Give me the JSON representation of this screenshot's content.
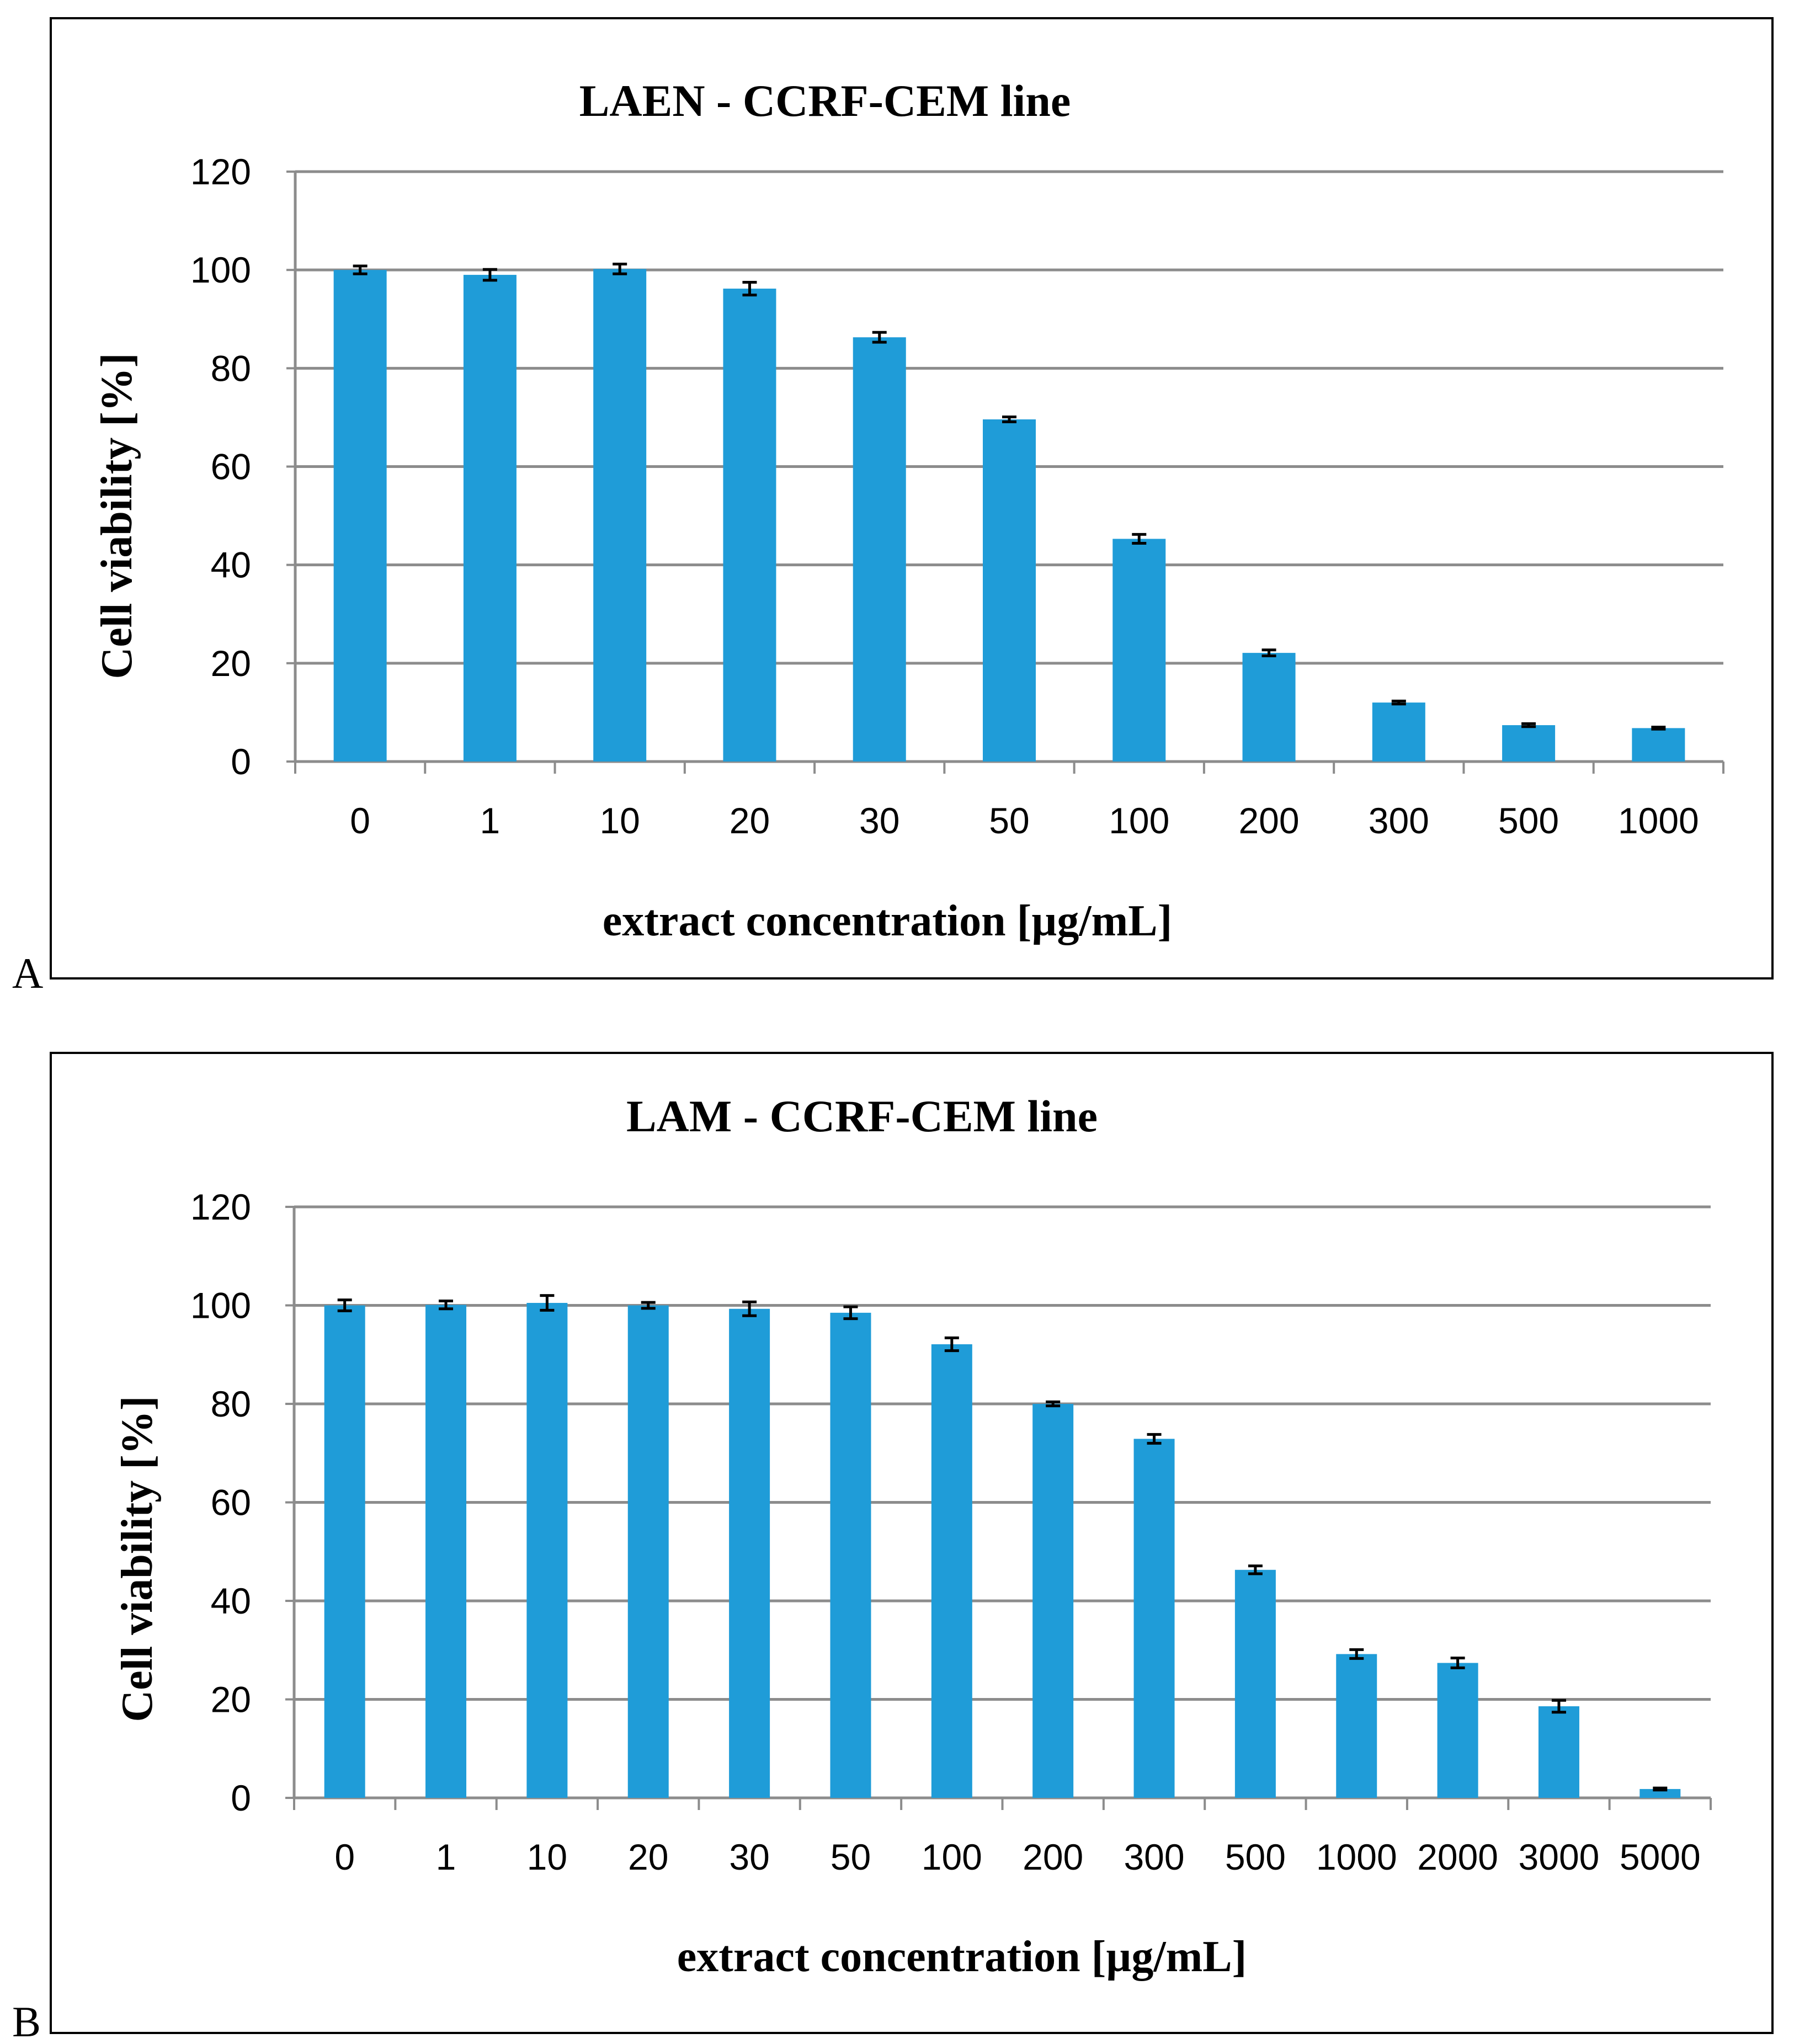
{
  "chart_data": [
    {
      "type": "bar",
      "panel": "A",
      "title": "LAEN - CCRF-CEM line",
      "xlabel": "extract concentration [µg/mL]",
      "ylabel": "Cell viability [%]",
      "ylim": [
        0,
        120
      ],
      "yticks": [
        0,
        20,
        40,
        60,
        80,
        100,
        120
      ],
      "grid": true,
      "bar_color": "#1f9cd8",
      "categories": [
        "0",
        "1",
        "10",
        "20",
        "30",
        "50",
        "100",
        "200",
        "300",
        "500",
        "1000"
      ],
      "values": [
        100,
        99,
        100.2,
        96.2,
        86.3,
        69.6,
        45.3,
        22.1,
        12.0,
        7.4,
        6.8
      ],
      "errors": [
        0.8,
        1.1,
        1.0,
        1.3,
        1.0,
        0.5,
        0.9,
        0.6,
        0.3,
        0.3,
        0.2
      ]
    },
    {
      "type": "bar",
      "panel": "B",
      "title": "LAM - CCRF-CEM line",
      "xlabel": "extract concentration [µg/mL]",
      "ylabel": "Cell viability [%]",
      "ylim": [
        0,
        120
      ],
      "yticks": [
        0,
        20,
        40,
        60,
        80,
        100,
        120
      ],
      "grid": true,
      "bar_color": "#1f9cd8",
      "categories": [
        "0",
        "1",
        "10",
        "20",
        "30",
        "50",
        "100",
        "200",
        "300",
        "500",
        "1000",
        "2000",
        "3000",
        "5000"
      ],
      "values": [
        100,
        100.1,
        100.5,
        100,
        99.3,
        98.5,
        92.1,
        80,
        72.9,
        46.3,
        29.2,
        27.4,
        18.6,
        1.8
      ],
      "errors": [
        1.1,
        0.8,
        1.5,
        0.6,
        1.4,
        1.2,
        1.3,
        0.4,
        0.9,
        0.8,
        0.9,
        1.0,
        1.2,
        0.2
      ]
    }
  ]
}
